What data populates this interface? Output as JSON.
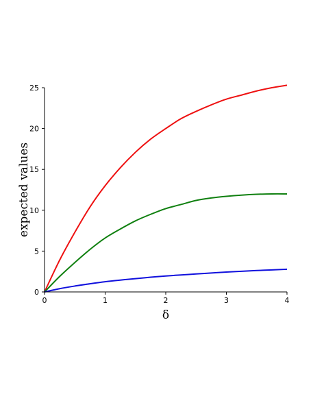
{
  "chart_data": {
    "type": "line",
    "title": "",
    "xlabel": "δ",
    "ylabel": "expected values",
    "xlim": [
      0,
      4
    ],
    "ylim": [
      0,
      25
    ],
    "x_ticks": [
      "0",
      "1",
      "2",
      "3",
      "4"
    ],
    "y_ticks": [
      "0",
      "5",
      "10",
      "15",
      "20",
      "25"
    ],
    "grid": false,
    "legend": "none",
    "series": [
      {
        "color": "#ee1111",
        "x": [
          0,
          0.25,
          0.5,
          0.75,
          1.0,
          1.25,
          1.5,
          1.75,
          2.0,
          2.25,
          2.5,
          2.75,
          3.0,
          3.25,
          3.5,
          3.75,
          4.0
        ],
        "y": [
          0,
          3.9,
          7.3,
          10.4,
          13.0,
          15.2,
          17.1,
          18.7,
          20.0,
          21.2,
          22.1,
          22.9,
          23.6,
          24.1,
          24.6,
          25.0,
          25.3
        ]
      },
      {
        "color": "#108010",
        "x": [
          0,
          0.25,
          0.5,
          0.75,
          1.0,
          1.25,
          1.5,
          1.75,
          2.0,
          2.25,
          2.5,
          2.75,
          3.0,
          3.25,
          3.5,
          3.75,
          4.0
        ],
        "y": [
          0,
          1.9,
          3.6,
          5.2,
          6.6,
          7.7,
          8.7,
          9.5,
          10.2,
          10.7,
          11.2,
          11.5,
          11.7,
          11.85,
          11.95,
          12.0,
          12.0
        ]
      },
      {
        "color": "#1010dd",
        "x": [
          0,
          0.25,
          0.5,
          0.75,
          1.0,
          1.25,
          1.5,
          1.75,
          2.0,
          2.25,
          2.5,
          2.75,
          3.0,
          3.25,
          3.5,
          3.75,
          4.0
        ],
        "y": [
          0,
          0.4,
          0.72,
          1.0,
          1.25,
          1.45,
          1.63,
          1.8,
          1.95,
          2.08,
          2.2,
          2.32,
          2.43,
          2.53,
          2.62,
          2.7,
          2.78
        ]
      }
    ]
  }
}
